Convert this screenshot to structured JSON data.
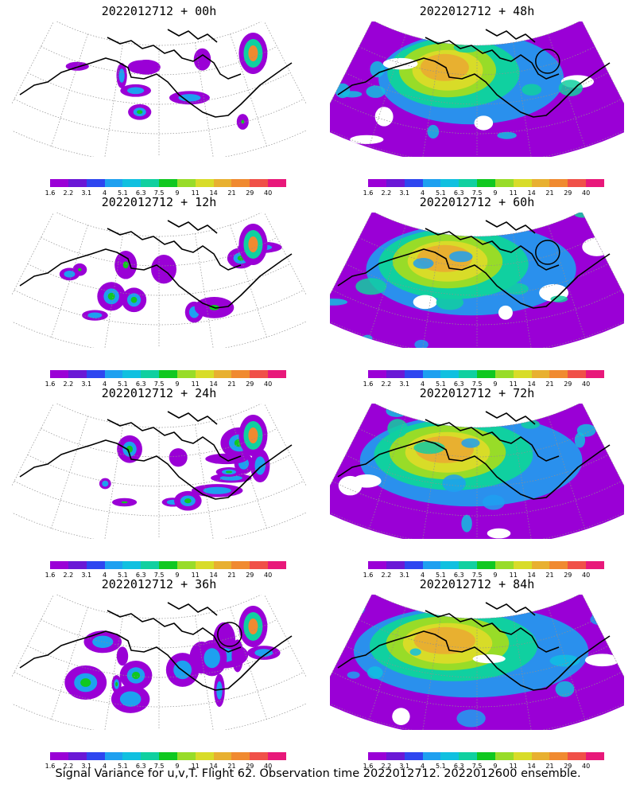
{
  "panels": [
    {
      "title": "2022012712 + 00h",
      "coverage": 0.25,
      "circle": false
    },
    {
      "title": "2022012712 + 48h",
      "coverage": 0.75,
      "circle": true
    },
    {
      "title": "2022012712 + 12h",
      "coverage": 0.35,
      "circle": false
    },
    {
      "title": "2022012712 + 60h",
      "coverage": 0.85,
      "circle": true
    },
    {
      "title": "2022012712 + 24h",
      "coverage": 0.45,
      "circle": false
    },
    {
      "title": "2022012712 + 72h",
      "coverage": 0.9,
      "circle": false
    },
    {
      "title": "2022012712 + 36h",
      "coverage": 0.55,
      "circle": true
    },
    {
      "title": "2022012712 + 84h",
      "coverage": 0.95,
      "circle": false
    }
  ],
  "colorbar": {
    "labels": [
      "1.6",
      "2.2",
      "3.1",
      "4",
      "5.1",
      "6.3",
      "7.5",
      "9",
      "11",
      "14",
      "21",
      "29",
      "40"
    ],
    "colors": [
      "#9a00d6",
      "#6a18d6",
      "#2e46f0",
      "#1ea0f0",
      "#10c0e0",
      "#10d0a0",
      "#10c820",
      "#98dc28",
      "#d8dc28",
      "#e8b030",
      "#f08a30",
      "#f05048",
      "#e8187a"
    ]
  },
  "caption": "Signal Variance for u,v,T. Flight 62. Observation time 2022012712. 2022012600 ensemble."
}
